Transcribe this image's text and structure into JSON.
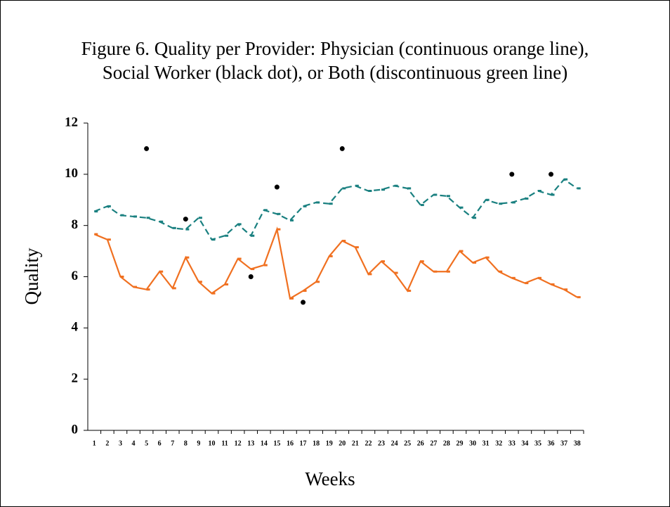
{
  "chart_data": {
    "type": "line",
    "title": [
      "Figure 6. Quality per Provider: Physician (continuous orange line),",
      "Social Worker (black dot), or Both (discontinuous green line)"
    ],
    "x_label": "Weeks",
    "y_label": "Quality",
    "categories": [
      "1",
      "2",
      "3",
      "4",
      "5",
      "6",
      "7",
      "8",
      "9",
      "10",
      "11",
      "12",
      "13",
      "14",
      "15",
      "16",
      "17",
      "18",
      "19",
      "20",
      "21",
      "22",
      "23",
      "24",
      "25",
      "26",
      "27",
      "28",
      "29",
      "30",
      "31",
      "32",
      "33",
      "34",
      "35",
      "36",
      "37",
      "38"
    ],
    "series": [
      {
        "color": "#f07020",
        "style": "solid",
        "values": [
          7.66,
          7.45,
          6.0,
          5.6,
          5.5,
          6.2,
          5.55,
          6.75,
          5.8,
          5.35,
          5.7,
          6.7,
          6.3,
          6.45,
          7.85,
          5.15,
          5.45,
          5.8,
          6.8,
          7.4,
          7.15,
          6.1,
          6.6,
          6.15,
          5.45,
          6.6,
          6.2,
          6.2,
          7.0,
          6.55,
          6.75,
          6.2,
          5.95,
          5.75,
          5.95,
          5.7,
          5.5,
          5.2
        ]
      },
      {
        "color": "#1a8080",
        "style": "dashed",
        "values": [
          8.55,
          8.75,
          8.4,
          8.35,
          8.3,
          8.15,
          7.9,
          7.85,
          8.3,
          7.45,
          7.6,
          8.05,
          7.6,
          8.6,
          8.45,
          8.2,
          8.75,
          8.9,
          8.85,
          9.45,
          9.55,
          9.35,
          9.4,
          9.55,
          9.45,
          8.8,
          9.2,
          9.15,
          8.7,
          8.3,
          9.0,
          8.85,
          8.9,
          9.05,
          9.35,
          9.2,
          9.8,
          9.45
        ]
      },
      {
        "color": "#000000",
        "style": "dots",
        "values": [
          null,
          null,
          null,
          null,
          11,
          null,
          null,
          8.25,
          null,
          null,
          null,
          null,
          6,
          null,
          9.5,
          null,
          5,
          null,
          null,
          11,
          null,
          null,
          null,
          null,
          null,
          null,
          null,
          null,
          null,
          null,
          null,
          null,
          10,
          null,
          null,
          10,
          null,
          null
        ]
      }
    ],
    "ylim": [
      0,
      12
    ],
    "yticks": [
      0,
      2,
      4,
      6,
      8,
      10,
      12
    ]
  }
}
